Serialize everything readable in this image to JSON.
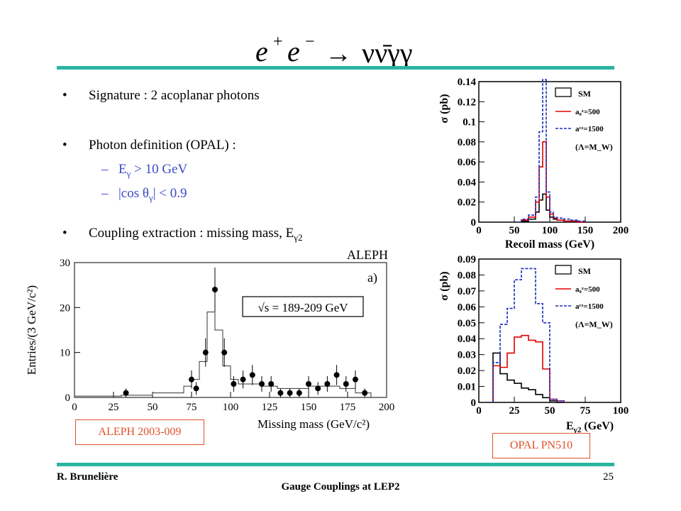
{
  "slide": {
    "title_lhs": "e",
    "title_sup1": "+",
    "title_e2": "e",
    "title_sup2": "−",
    "title_arrow": "→",
    "title_rhs": "νν̄γγ",
    "page_number": "25",
    "author": "R. Brunelière",
    "footer_title": "Gauge Couplings at LEP2"
  },
  "bullets": [
    {
      "marker": "•",
      "text": "Signature : 2 acoplanar photons"
    },
    {
      "marker": "•",
      "text": "Photon definition (OPAL)  :"
    },
    {
      "marker": "•",
      "text": "Coupling extraction : missing mass, E",
      "sub": "γ2"
    }
  ],
  "subbullets": [
    {
      "marker": "–",
      "prefix": "E",
      "sub": "γ",
      "suffix": " > 10 GeV"
    },
    {
      "marker": "–",
      "prefix": "|cos  θ",
      "sub": "γ",
      "suffix": "| < 0.9"
    }
  ],
  "labels": {
    "aleph_ref": "ALEPH 2003-009",
    "opal_ref": "OPAL PN510"
  },
  "chart_data": [
    {
      "type": "bar",
      "id": "opal_recoil",
      "title": "",
      "xlabel": "Recoil mass (GeV)",
      "ylabel": "σ (pb)",
      "xlim": [
        0,
        200
      ],
      "ylim": [
        0,
        0.14
      ],
      "xticks": [
        "0",
        "50",
        "100",
        "150",
        "200"
      ],
      "yticks": [
        "0",
        "0.02",
        "0.04",
        "0.06",
        "0.08",
        "0.1",
        "0.12",
        "0.14"
      ],
      "bin_edges": [
        60,
        70,
        80,
        85,
        90,
        95,
        100,
        105,
        110,
        120,
        130,
        140,
        150
      ],
      "legend": [
        "SM",
        "a₀ᶻ=500",
        "aᶜᶻ=1500",
        "(Λ=M_W)"
      ],
      "series": [
        {
          "name": "SM",
          "color": "#000000",
          "values": [
            0.001,
            0.003,
            0.01,
            0.022,
            0.028,
            0.012,
            0.005,
            0.003,
            0.002,
            0.001,
            0.001,
            0.0
          ]
        },
        {
          "name": "a₀ᶻ=500",
          "color": "#e00000",
          "values": [
            0.002,
            0.005,
            0.02,
            0.055,
            0.08,
            0.025,
            0.008,
            0.004,
            0.002,
            0.001,
            0.001,
            0.0
          ]
        },
        {
          "name": "aᶜᶻ=1500",
          "color": "#1a2dbf",
          "values": [
            0.003,
            0.007,
            0.025,
            0.09,
            0.142,
            0.03,
            0.01,
            0.005,
            0.004,
            0.003,
            0.002,
            0.001
          ]
        }
      ]
    },
    {
      "type": "bar",
      "id": "opal_egamma",
      "title": "",
      "xlabel": "E",
      "xlabel_sub": "γ2",
      "xlabel_unit": " (GeV)",
      "ylabel": "σ (pb)",
      "xlim": [
        0,
        100
      ],
      "ylim": [
        0,
        0.09
      ],
      "xticks": [
        "0",
        "25",
        "50",
        "75",
        "100"
      ],
      "yticks": [
        "0",
        "0.01",
        "0.02",
        "0.03",
        "0.04",
        "0.05",
        "0.06",
        "0.07",
        "0.08",
        "0.09"
      ],
      "bin_edges": [
        10,
        15,
        20,
        25,
        30,
        35,
        40,
        45,
        50,
        55,
        60
      ],
      "legend": [
        "SM",
        "a₀ᶻ=500",
        "aᶜᶻ=1500",
        "(Λ=M_W)"
      ],
      "series": [
        {
          "name": "SM",
          "color": "#000000",
          "values": [
            0.031,
            0.018,
            0.014,
            0.012,
            0.009,
            0.008,
            0.005,
            0.003,
            0.001,
            0.0
          ]
        },
        {
          "name": "a₀ᶻ=500",
          "color": "#e00000",
          "values": [
            0.023,
            0.022,
            0.031,
            0.041,
            0.042,
            0.039,
            0.038,
            0.021,
            0.002,
            0.001
          ]
        },
        {
          "name": "aᶜᶻ=1500",
          "color": "#1a2dbf",
          "values": [
            0.025,
            0.049,
            0.059,
            0.077,
            0.084,
            0.084,
            0.062,
            0.05,
            0.002,
            0.001
          ]
        }
      ]
    },
    {
      "type": "scatter",
      "id": "aleph_missing_mass",
      "title": "ALEPH",
      "panel_label": "a)",
      "annotation": "√s = 189-209 GeV",
      "xlabel": "Missing mass (GeV/c²)",
      "ylabel": "Entries/(3 GeV/c²)",
      "xlim": [
        0,
        200
      ],
      "ylim": [
        0,
        30
      ],
      "xticks": [
        "0",
        "25",
        "50",
        "75",
        "100",
        "125",
        "150",
        "175",
        "200"
      ],
      "yticks": [
        "0",
        "10",
        "20",
        "30"
      ],
      "points": [
        {
          "x": 33,
          "y": 1
        },
        {
          "x": 75,
          "y": 4
        },
        {
          "x": 78,
          "y": 2
        },
        {
          "x": 84,
          "y": 10
        },
        {
          "x": 90,
          "y": 24
        },
        {
          "x": 96,
          "y": 10
        },
        {
          "x": 102,
          "y": 3
        },
        {
          "x": 108,
          "y": 4
        },
        {
          "x": 114,
          "y": 5
        },
        {
          "x": 120,
          "y": 3
        },
        {
          "x": 126,
          "y": 3
        },
        {
          "x": 132,
          "y": 1
        },
        {
          "x": 138,
          "y": 1
        },
        {
          "x": 144,
          "y": 1
        },
        {
          "x": 150,
          "y": 3
        },
        {
          "x": 156,
          "y": 2
        },
        {
          "x": 162,
          "y": 3
        },
        {
          "x": 168,
          "y": 5
        },
        {
          "x": 174,
          "y": 3
        },
        {
          "x": 180,
          "y": 4
        },
        {
          "x": 186,
          "y": 1
        }
      ],
      "mc_histogram": {
        "bin_edges": [
          0,
          30,
          50,
          70,
          75,
          80,
          85,
          90,
          95,
          100,
          105,
          110,
          120,
          130,
          140,
          150,
          160,
          170,
          180,
          190
        ],
        "values": [
          0.3,
          0.5,
          1,
          2.5,
          4,
          8,
          19,
          15,
          7,
          4,
          3,
          3,
          2.5,
          2,
          2,
          2.5,
          2.5,
          2,
          1
        ]
      }
    }
  ]
}
